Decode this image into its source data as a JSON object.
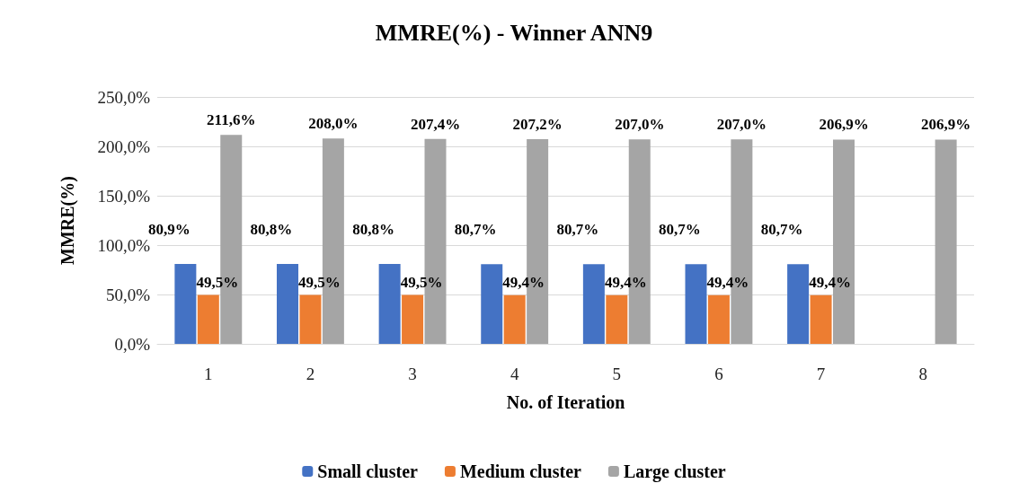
{
  "chart_data": {
    "type": "bar",
    "title": "MMRE(%) - Winner ANN9",
    "xlabel": "No. of Iteration",
    "ylabel": "MMRE(%)",
    "categories": [
      "1",
      "2",
      "3",
      "4",
      "5",
      "6",
      "7",
      "8"
    ],
    "series": [
      {
        "name": "Small cluster",
        "color": "#4472c4",
        "values": [
          80.9,
          80.8,
          80.8,
          80.7,
          80.7,
          80.7,
          80.7,
          null
        ],
        "value_labels": [
          "80,9%",
          "80,8%",
          "80,8%",
          "80,7%",
          "80,7%",
          "80,7%",
          "80,7%",
          null
        ]
      },
      {
        "name": "Medium cluster",
        "color": "#ed7d31",
        "values": [
          49.5,
          49.5,
          49.5,
          49.4,
          49.4,
          49.4,
          49.4,
          null
        ],
        "value_labels": [
          "49,5%",
          "49,5%",
          "49,5%",
          "49,4%",
          "49,4%",
          "49,4%",
          "49,4%",
          null
        ]
      },
      {
        "name": "Large cluster",
        "color": "#a5a5a5",
        "values": [
          211.6,
          208.0,
          207.4,
          207.2,
          207.0,
          207.0,
          206.9,
          206.9
        ],
        "value_labels": [
          "211,6%",
          "208,0%",
          "207,4%",
          "207,2%",
          "207,0%",
          "207,0%",
          "206,9%",
          "206,9%"
        ]
      }
    ],
    "ylim": [
      0,
      250
    ],
    "yticks": [
      {
        "value": 0,
        "label": "0,0%"
      },
      {
        "value": 50,
        "label": "50,0%"
      },
      {
        "value": 100,
        "label": "100,0%"
      },
      {
        "value": 150,
        "label": "150,0%"
      },
      {
        "value": 200,
        "label": "200,0%"
      },
      {
        "value": 250,
        "label": "250,0%"
      }
    ],
    "grid": "y",
    "legend": "bottom"
  }
}
